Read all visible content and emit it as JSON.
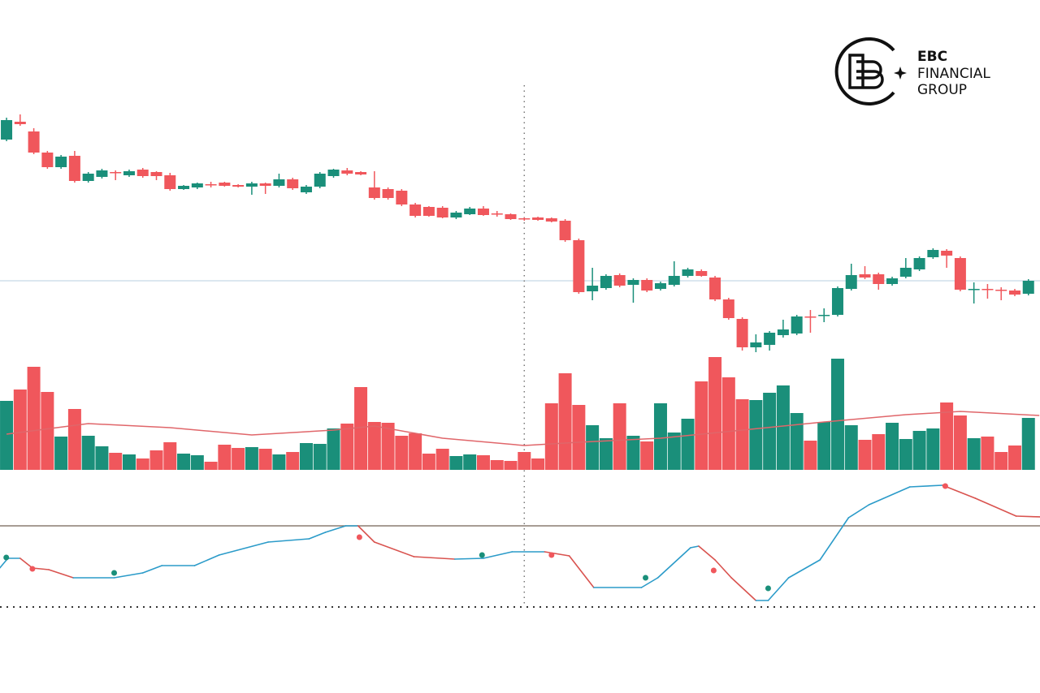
{
  "logo": {
    "line1": "EBC",
    "line2": "FINANCIAL",
    "line3": "GROUP"
  },
  "chart_data": {
    "type": "candlestick",
    "xlim": [
      -0.48,
      75.85
    ],
    "ylim": [
      0,
      340
    ],
    "up_color": "#1a8f7a",
    "down_color": "#f0575c",
    "crosshair": {
      "x": 38,
      "y": 94
    },
    "open": [
      268,
      290,
      278,
      252,
      234,
      248,
      217,
      222,
      228,
      224,
      231,
      228,
      224,
      207,
      209,
      213,
      215,
      212,
      210,
      214,
      211,
      219,
      203,
      210,
      223,
      230,
      228,
      209,
      207,
      205,
      188,
      185,
      184,
      172,
      176,
      183,
      177,
      176,
      171,
      172,
      171,
      168,
      144,
      81,
      85,
      101,
      89,
      95,
      84,
      89,
      100,
      106,
      98,
      71,
      47,
      12,
      15,
      27,
      29,
      50,
      51,
      52,
      84,
      102,
      102,
      90,
      99,
      108,
      123,
      131,
      122,
      84,
      84,
      83,
      82,
      78
    ],
    "high": [
      295,
      299,
      282,
      254,
      249,
      254,
      228,
      232,
      230,
      231,
      233,
      229,
      227,
      212,
      215,
      216,
      216,
      213,
      216,
      215,
      226,
      221,
      212,
      228,
      232,
      233,
      229,
      229,
      209,
      207,
      190,
      186,
      186,
      180,
      185,
      186,
      180,
      177,
      172,
      173,
      172,
      170,
      146,
      110,
      102,
      103,
      97,
      97,
      93,
      118,
      110,
      108,
      100,
      73,
      49,
      28,
      32,
      46,
      52,
      58,
      60,
      87,
      115,
      112,
      104,
      99,
      122,
      124,
      134,
      133,
      124,
      92,
      90,
      86,
      84,
      96
    ],
    "low": [
      266,
      285,
      250,
      232,
      232,
      215,
      215,
      220,
      218,
      222,
      221,
      218,
      205,
      206,
      207,
      209,
      210,
      209,
      200,
      201,
      209,
      206,
      201,
      208,
      221,
      224,
      224,
      194,
      194,
      186,
      172,
      173,
      171,
      170,
      175,
      174,
      173,
      169,
      168,
      168,
      166,
      142,
      78,
      70,
      83,
      86,
      67,
      80,
      82,
      87,
      98,
      99,
      69,
      46,
      8,
      6,
      8,
      24,
      27,
      30,
      43,
      50,
      82,
      96,
      83,
      88,
      97,
      106,
      121,
      110,
      81,
      66,
      72,
      70,
      75,
      76
    ],
    "close": [
      292,
      287,
      252,
      234,
      247,
      217,
      226,
      230,
      227,
      229,
      223,
      223,
      207,
      211,
      214,
      212,
      211,
      210,
      214,
      211,
      219,
      208,
      210,
      226,
      231,
      226,
      225,
      196,
      196,
      188,
      174,
      174,
      172,
      178,
      183,
      175,
      176,
      170,
      170,
      169,
      167,
      144,
      80,
      88,
      100,
      88,
      95,
      82,
      91,
      100,
      108,
      100,
      71,
      48,
      12,
      18,
      30,
      34,
      50,
      49,
      52,
      85,
      101,
      98,
      90,
      97,
      110,
      122,
      132,
      125,
      83,
      84,
      83,
      82,
      77,
      94
    ],
    "volume": {
      "ylim": [
        0,
        140
      ],
      "values": [
        85,
        99,
        127,
        96,
        41,
        75,
        42,
        29,
        21,
        19,
        14,
        24,
        34,
        20,
        18,
        10,
        31,
        27,
        28,
        26,
        19,
        22,
        33,
        32,
        51,
        57,
        102,
        59,
        58,
        42,
        45,
        20,
        26,
        17,
        19,
        18,
        12,
        11,
        22,
        14,
        82,
        119,
        80,
        55,
        39,
        82,
        42,
        35,
        82,
        46,
        63,
        109,
        139,
        114,
        87,
        86,
        95,
        104,
        70,
        36,
        59,
        137,
        55,
        37,
        44,
        58,
        38,
        48,
        51,
        83,
        67,
        39,
        41,
        22,
        30,
        64
      ],
      "ma": {
        "color": "#e0666a",
        "x": [
          0,
          6,
          12,
          18,
          24,
          27,
          32,
          38,
          42,
          48,
          54,
          60,
          66,
          70,
          75.8
        ],
        "values": [
          44,
          57,
          52,
          43,
          49,
          54,
          39,
          30,
          34,
          39,
          49,
          59,
          68,
          72,
          67
        ]
      }
    },
    "indicator": {
      "ylim": [
        0,
        145
      ],
      "level": 97,
      "up_color": "#2b9bc9",
      "down_color": "#d9534f",
      "x": [
        -0.5,
        0.1,
        1,
        1.9,
        3.1,
        4.9,
        7.9,
        10,
        11.4,
        13.8,
        15.6,
        19.2,
        22.2,
        23.4,
        24.9,
        25.8,
        27,
        29.9,
        32.9,
        35,
        37.1,
        39.5,
        41.3,
        43.1,
        46.6,
        47.8,
        50.2,
        50.8,
        52,
        53.2,
        55,
        55.9,
        57.4,
        59.7,
        61.8,
        63.3,
        66.3,
        68.7,
        71.1,
        74.1,
        75.9
      ],
      "values": [
        45,
        57,
        57,
        45,
        43,
        33,
        33,
        39,
        48,
        48,
        61,
        77,
        81,
        89,
        97,
        97,
        77,
        59,
        56,
        57,
        65,
        65,
        60,
        21,
        21,
        33,
        70,
        72,
        55,
        33,
        5,
        5,
        33,
        55,
        107,
        123,
        145,
        147,
        131,
        109,
        108
      ],
      "signals": {
        "x": [
          -0.02,
          1.9,
          7.9,
          25.9,
          34.9,
          40,
          46.9,
          51.9,
          55.9,
          68.9
        ],
        "values": [
          58,
          44,
          39,
          83,
          61,
          61,
          33,
          42,
          20,
          146
        ],
        "colors": [
          "#1a8f7a",
          "#f0575c",
          "#1a8f7a",
          "#f0575c",
          "#1a8f7a",
          "#f0575c",
          "#1a8f7a",
          "#f0575c",
          "#1a8f7a",
          "#f0575c"
        ]
      }
    }
  }
}
